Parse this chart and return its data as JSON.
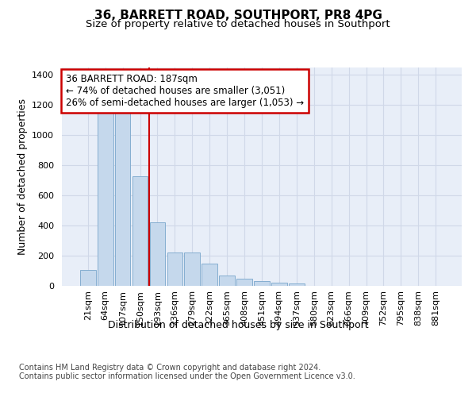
{
  "title": "36, BARRETT ROAD, SOUTHPORT, PR8 4PG",
  "subtitle": "Size of property relative to detached houses in Southport",
  "xlabel": "Distribution of detached houses by size in Southport",
  "ylabel": "Number of detached properties",
  "categories": [
    "21sqm",
    "64sqm",
    "107sqm",
    "150sqm",
    "193sqm",
    "236sqm",
    "279sqm",
    "322sqm",
    "365sqm",
    "408sqm",
    "451sqm",
    "494sqm",
    "537sqm",
    "580sqm",
    "623sqm",
    "666sqm",
    "709sqm",
    "752sqm",
    "795sqm",
    "838sqm",
    "881sqm"
  ],
  "values": [
    105,
    1160,
    1160,
    730,
    420,
    220,
    220,
    148,
    70,
    50,
    32,
    20,
    18,
    0,
    0,
    0,
    0,
    0,
    0,
    0,
    0
  ],
  "bar_color": "#c5d8ec",
  "bar_edge_color": "#85aed0",
  "vline_x_index": 4,
  "vline_color": "#cc0000",
  "annotation_text": "36 BARRETT ROAD: 187sqm\n← 74% of detached houses are smaller (3,051)\n26% of semi-detached houses are larger (1,053) →",
  "annotation_box_color": "#ffffff",
  "annotation_box_edge": "#cc0000",
  "ylim": [
    0,
    1450
  ],
  "yticks": [
    0,
    200,
    400,
    600,
    800,
    1000,
    1200,
    1400
  ],
  "grid_color": "#d0d8e8",
  "bg_color": "#e8eef8",
  "footer": "Contains HM Land Registry data © Crown copyright and database right 2024.\nContains public sector information licensed under the Open Government Licence v3.0.",
  "title_fontsize": 11,
  "subtitle_fontsize": 9.5,
  "axis_label_fontsize": 9,
  "tick_fontsize": 8,
  "footer_fontsize": 7,
  "annot_fontsize": 8.5
}
